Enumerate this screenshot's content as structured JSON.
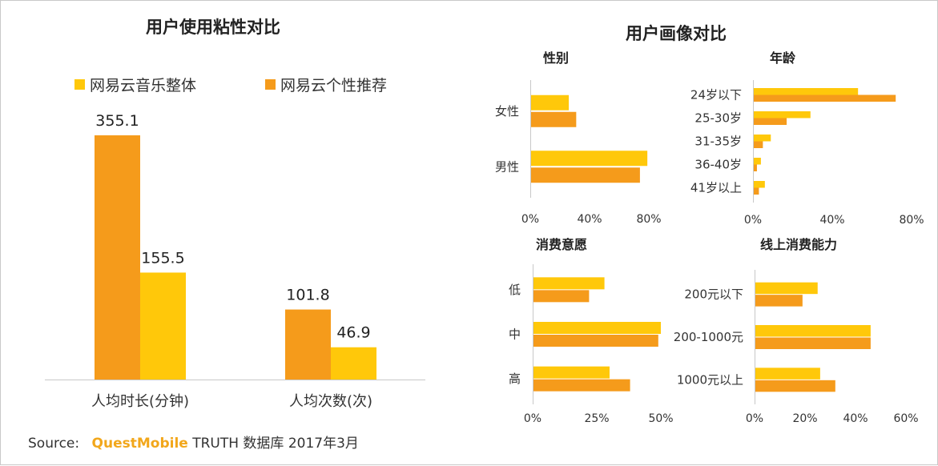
{
  "colors": {
    "overall": "#ffc80a",
    "personalized": "#f59b1b",
    "axis": "#c8c8c8"
  },
  "source": {
    "label": "Source:",
    "brand": "QuestMobile",
    "rest": "TRUTH 数据库 2017年3月"
  },
  "chart_data": [
    {
      "id": "stickiness",
      "type": "bar",
      "title": "用户使用粘性对比",
      "categories": [
        "人均时长(分钟)",
        "人均次数(次)"
      ],
      "legend_position": "top-left",
      "series": [
        {
          "name": "网易云音乐整体",
          "color": "#ffc80a",
          "values": [
            155.5,
            46.9
          ]
        },
        {
          "name": "网易云个性推荐",
          "color": "#f59b1b",
          "values": [
            355.1,
            101.8
          ]
        }
      ],
      "value_labels": [
        [
          "155.5",
          "46.9"
        ],
        [
          "355.1",
          "101.8"
        ]
      ],
      "ylim": [
        0,
        355.1
      ]
    },
    {
      "id": "portrait",
      "title": "用户画像对比",
      "panels": [
        {
          "id": "gender",
          "type": "bar",
          "orientation": "horizontal",
          "title": "性别",
          "categories": [
            "女性",
            "男性"
          ],
          "xlim": [
            0,
            80
          ],
          "xticks": [
            "0%",
            "40%",
            "80%"
          ],
          "series": [
            {
              "name": "网易云音乐整体",
              "values": [
                26,
                79
              ]
            },
            {
              "name": "网易云个性推荐",
              "values": [
                31,
                74
              ]
            }
          ]
        },
        {
          "id": "age",
          "type": "bar",
          "orientation": "horizontal",
          "title": "年龄",
          "categories": [
            "24岁以下",
            "25-30岁",
            "31-35岁",
            "36-40岁",
            "41岁以上"
          ],
          "xlim": [
            0,
            80
          ],
          "xticks": [
            "0%",
            "40%",
            "80%"
          ],
          "series": [
            {
              "name": "网易云音乐整体",
              "values": [
                53,
                29,
                9,
                4,
                6
              ]
            },
            {
              "name": "网易云个性推荐",
              "values": [
                72,
                17,
                5,
                2,
                3
              ]
            }
          ]
        },
        {
          "id": "willingness",
          "type": "bar",
          "orientation": "horizontal",
          "title": "消费意愿",
          "categories": [
            "低",
            "中",
            "高"
          ],
          "xlim": [
            0,
            50
          ],
          "xticks": [
            "0%",
            "25%",
            "50%"
          ],
          "series": [
            {
              "name": "网易云音乐整体",
              "values": [
                28,
                50,
                30
              ]
            },
            {
              "name": "网易云个性推荐",
              "values": [
                22,
                49,
                38
              ]
            }
          ]
        },
        {
          "id": "ability",
          "type": "bar",
          "orientation": "horizontal",
          "title": "线上消费能力",
          "categories": [
            "200元以下",
            "200-1000元",
            "1000元以上"
          ],
          "xlim": [
            0,
            60
          ],
          "xticks": [
            "0%",
            "20%",
            "40%",
            "60%"
          ],
          "series": [
            {
              "name": "网易云音乐整体",
              "values": [
                25,
                46,
                26
              ]
            },
            {
              "name": "网易云个性推荐",
              "values": [
                19,
                46,
                32
              ]
            }
          ]
        }
      ]
    }
  ]
}
